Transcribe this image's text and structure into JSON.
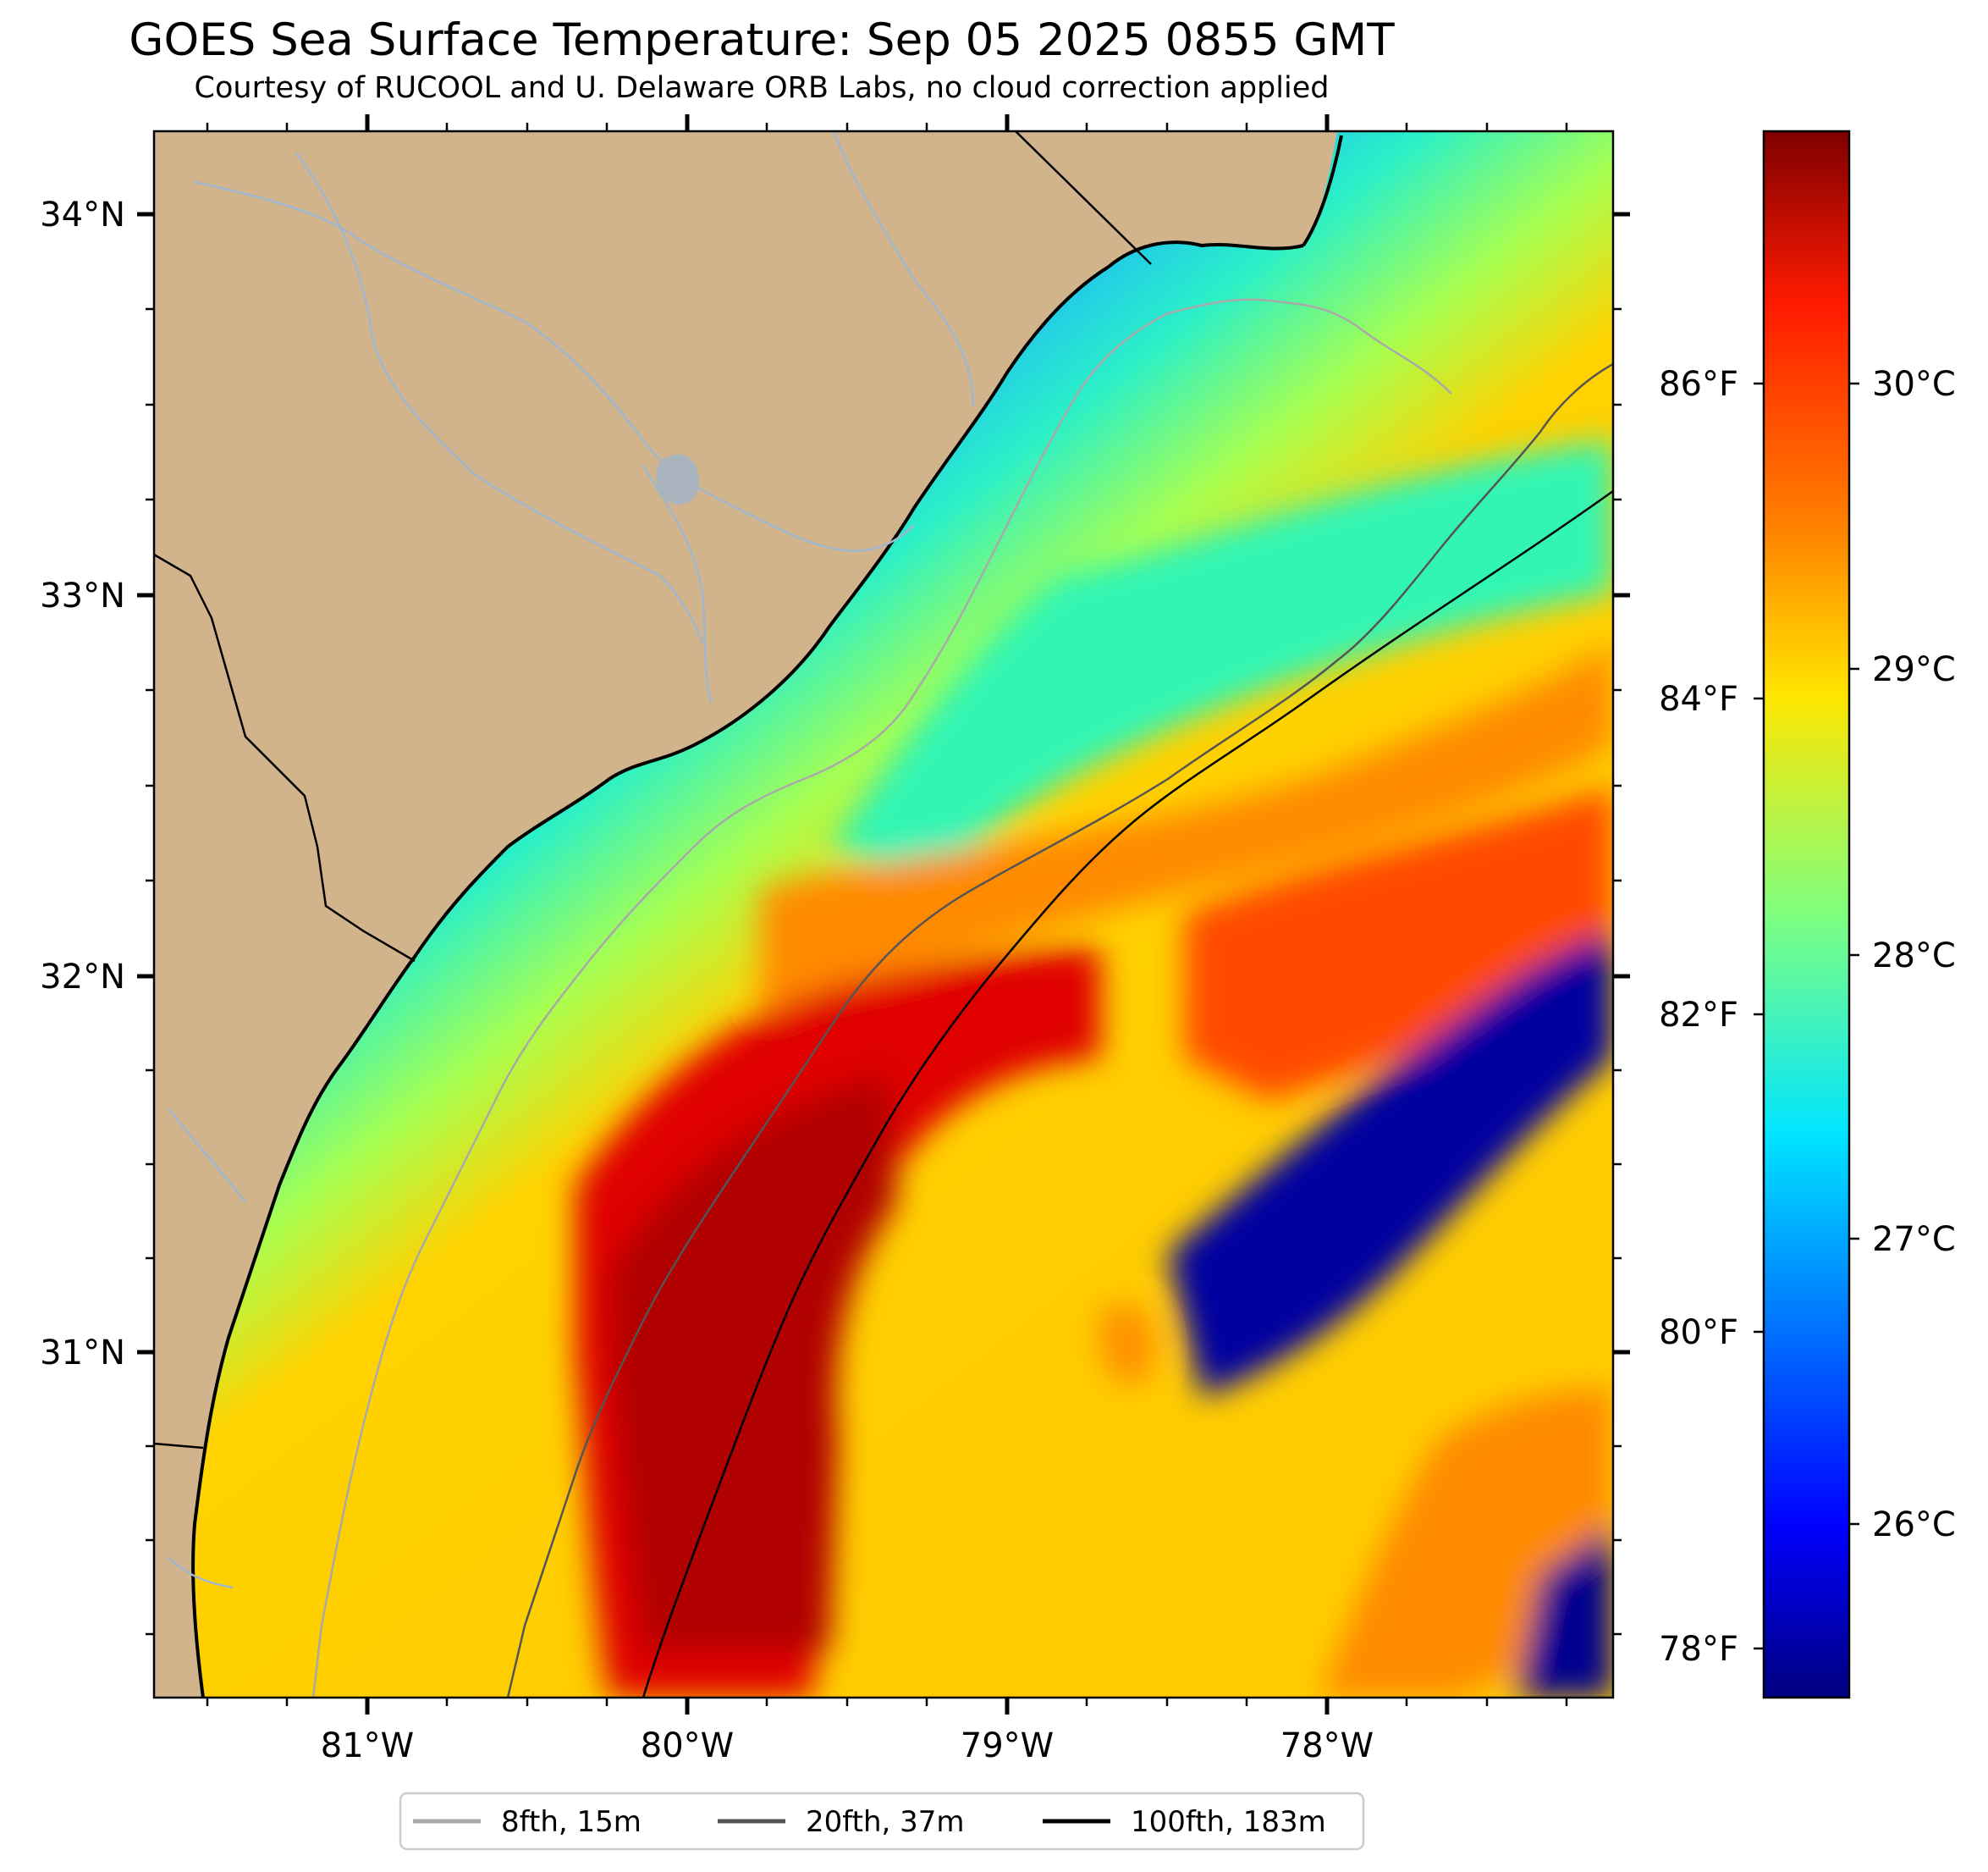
{
  "title": "GOES Sea Surface Temperature: Sep 05 2025 0855 GMT",
  "subtitle": "Courtesy of RUCOOL and U. Delaware ORB Labs, no cloud correction applied",
  "map": {
    "lat_labels": [
      "34°N",
      "33°N",
      "32°N",
      "31°N"
    ],
    "lon_labels": [
      "81°W",
      "80°W",
      "79°W",
      "78°W"
    ],
    "land_color": "#d2b48c",
    "coastline_color": "#000000",
    "river_color": "#9fb6cd"
  },
  "colorbar": {
    "colormap": "jet",
    "celsius_labels": [
      "30°C",
      "29°C",
      "28°C",
      "27°C",
      "26°C"
    ],
    "fahrenheit_labels": [
      "86°F",
      "84°F",
      "82°F",
      "80°F",
      "78°F"
    ]
  },
  "legend": {
    "items": [
      {
        "label": "8fth, 15m",
        "color": "#a9a9a9"
      },
      {
        "label": "20fth, 37m",
        "color": "#555555"
      },
      {
        "label": "100fth, 183m",
        "color": "#000000"
      }
    ]
  }
}
